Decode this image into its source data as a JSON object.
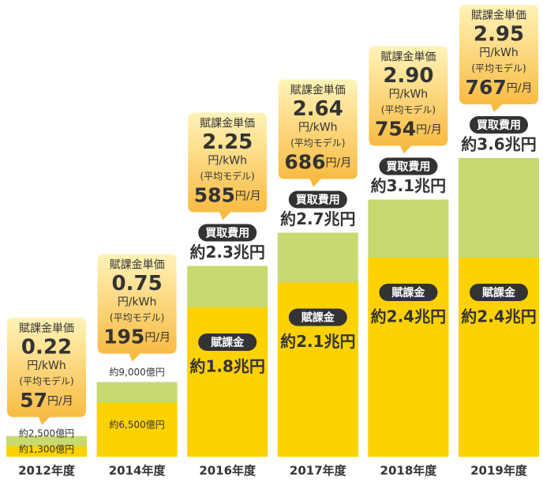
{
  "chart_data": {
    "type": "bar",
    "categories": [
      "2012年度",
      "2014年度",
      "2016年度",
      "2017年度",
      "2018年度",
      "2019年度"
    ],
    "series": [
      {
        "name": "買取費用",
        "color": "#c7d96f",
        "values": [
          2500,
          9000,
          23000,
          27000,
          31000,
          36000
        ],
        "value_labels": [
          "約2,500億円",
          "約9,000億円",
          "約2.3兆円",
          "約2.7兆円",
          "約3.1兆円",
          "約3.6兆円"
        ]
      },
      {
        "name": "賦課金",
        "color": "#fdd200",
        "values": [
          1300,
          6500,
          18000,
          21000,
          24000,
          24000
        ],
        "value_labels": [
          "約1,300億円",
          "約6,500億円",
          "約1.8兆円",
          "約2.1兆円",
          "約2.4兆円",
          "約2.4兆円"
        ]
      }
    ],
    "callout": {
      "title": "賦課金単価",
      "unit_price": [
        0.22,
        0.75,
        2.25,
        2.64,
        2.9,
        2.95
      ],
      "unit_price_labels": [
        "0.22",
        "0.75",
        "2.25",
        "2.64",
        "2.90",
        "2.95"
      ],
      "unit_price_unit": "円/kWh",
      "model": "(平均モデル)",
      "monthly": [
        57,
        195,
        585,
        686,
        754,
        767
      ],
      "monthly_unit": "円/月"
    }
  }
}
